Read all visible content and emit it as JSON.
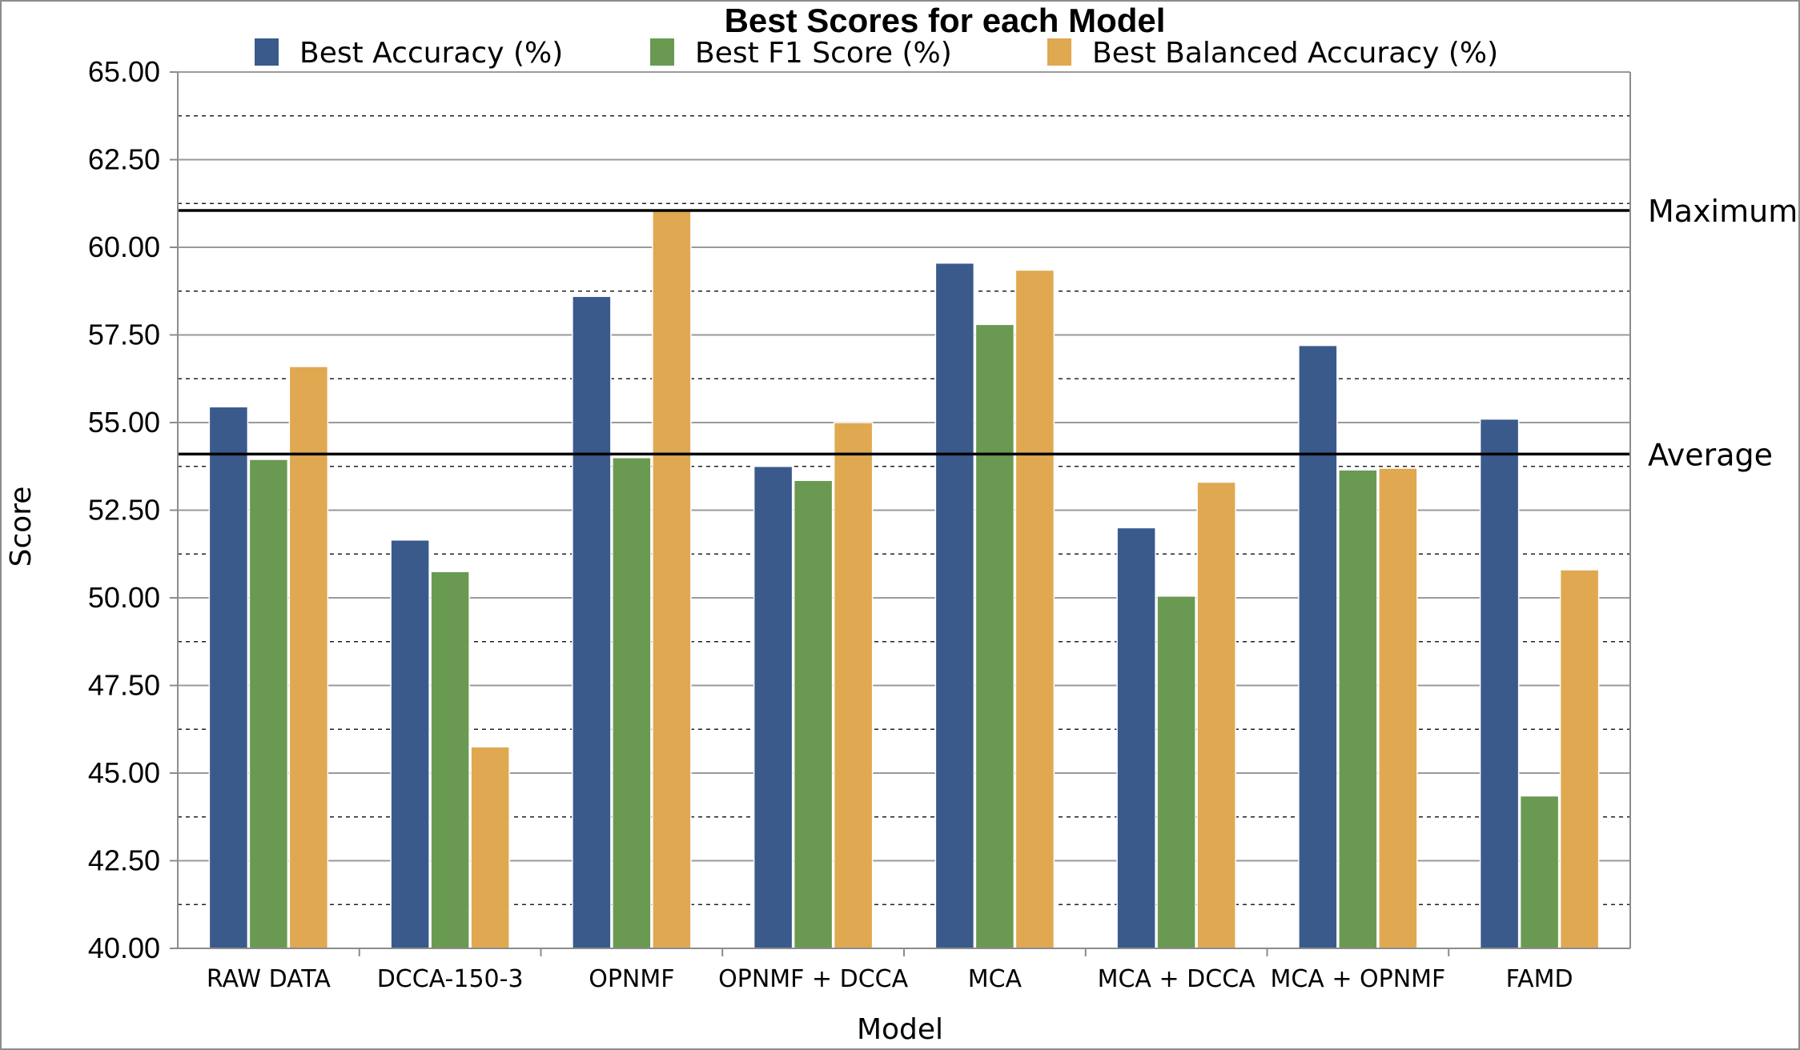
{
  "chart_data": {
    "type": "bar",
    "title": "Best Scores for each Model",
    "xlabel": "Model",
    "ylabel": "Score",
    "ylim": [
      40,
      65
    ],
    "yticks": [
      "40.00",
      "42.50",
      "45.00",
      "47.50",
      "50.00",
      "52.50",
      "55.00",
      "57.50",
      "60.00",
      "62.50",
      "65.00"
    ],
    "grid": true,
    "legend_position": "top",
    "categories": [
      "RAW DATA",
      "DCCA-150-3",
      "OPNMF",
      "OPNMF + DCCA",
      "MCA",
      "MCA + DCCA",
      "MCA + OPNMF",
      "FAMD"
    ],
    "series": [
      {
        "name": "Best Accuracy (%)",
        "color": "#3a5a8c",
        "values": [
          55.45,
          51.65,
          58.6,
          53.75,
          59.55,
          52.0,
          57.2,
          55.1
        ]
      },
      {
        "name": "Best F1 Score (%)",
        "color": "#6a9a52",
        "values": [
          53.95,
          50.75,
          54.0,
          53.35,
          57.8,
          50.05,
          53.65,
          44.35
        ]
      },
      {
        "name": "Best Balanced Accuracy (%)",
        "color": "#e0a850",
        "values": [
          56.6,
          45.75,
          61.05,
          55.0,
          59.35,
          53.3,
          53.7,
          50.8
        ]
      }
    ],
    "reference_lines": [
      {
        "label": "Maximum",
        "value": 61.05
      },
      {
        "label": "Average",
        "value": 54.1
      }
    ]
  }
}
